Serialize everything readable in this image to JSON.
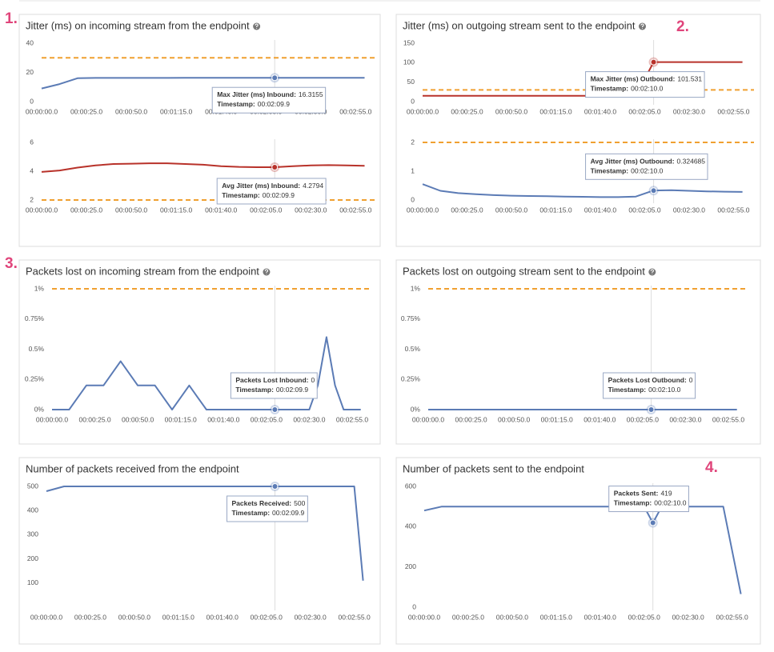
{
  "annotations": [
    "1.",
    "2.",
    "3.",
    "4."
  ],
  "chart_data": [
    {
      "type": "line",
      "title": "Jitter (ms) on incoming stream from the endpoint",
      "help_icon": true,
      "x": [
        0,
        10,
        20,
        30,
        40,
        50,
        60,
        70,
        80,
        90,
        100,
        110,
        120,
        130,
        140,
        150,
        160,
        170,
        180
      ],
      "series": [
        {
          "color": "#5b7bb5",
          "values": [
            9,
            12,
            16,
            16.2,
            16.2,
            16.2,
            16.2,
            16.2,
            16.3,
            16.3,
            16.3,
            16.3,
            16.3,
            16.3,
            16.3,
            16.3,
            16.3,
            16.3,
            16.3
          ]
        }
      ],
      "xlim": [
        0,
        182
      ],
      "ylim": [
        0,
        40
      ],
      "yticks": [
        0,
        20,
        40
      ],
      "xticks": [
        {
          "value": 0,
          "label": "00:00:00.0"
        },
        {
          "value": 25,
          "label": "00:00:25.0"
        },
        {
          "value": 50,
          "label": "00:00:50.0"
        },
        {
          "value": 75,
          "label": "00:01:15.0"
        },
        {
          "value": 100,
          "label": "00:01:40.0"
        },
        {
          "value": 125,
          "label": "00:02:05.0"
        },
        {
          "value": 150,
          "label": "00:02:30.0"
        },
        {
          "value": 175,
          "label": "00:02:55.0"
        }
      ],
      "threshold": {
        "value": 30,
        "color": "#f0a030"
      },
      "tooltip": {
        "label": "Max Jitter (ms) Inbound:",
        "value": 16.3155,
        "timestamp_label": "Timestamp:",
        "timestamp": "00:02:09.9"
      }
    },
    {
      "type": "line",
      "x": [
        0,
        10,
        20,
        30,
        40,
        50,
        60,
        70,
        80,
        90,
        100,
        110,
        120,
        130,
        140,
        150,
        160,
        170,
        180
      ],
      "series": [
        {
          "color": "#b8322a",
          "values": [
            3.95,
            4.05,
            4.25,
            4.4,
            4.5,
            4.52,
            4.55,
            4.55,
            4.5,
            4.45,
            4.35,
            4.3,
            4.28,
            4.28,
            4.35,
            4.4,
            4.42,
            4.4,
            4.38
          ]
        }
      ],
      "xlim": [
        0,
        182
      ],
      "ylim": [
        2,
        6
      ],
      "yticks": [
        2,
        4,
        6
      ],
      "xticks": [
        {
          "value": 0,
          "label": "00:00:00.0"
        },
        {
          "value": 25,
          "label": "00:00:25.0"
        },
        {
          "value": 50,
          "label": "00:00:50.0"
        },
        {
          "value": 75,
          "label": "00:01:15.0"
        },
        {
          "value": 100,
          "label": "00:01:40.0"
        },
        {
          "value": 125,
          "label": "00:02:05.0"
        },
        {
          "value": 150,
          "label": "00:02:30.0"
        },
        {
          "value": 175,
          "label": "00:02:55.0"
        }
      ],
      "threshold": {
        "value": 2,
        "color": "#f0a030"
      },
      "tooltip": {
        "label": "Avg Jitter (ms) Inbound:",
        "value": 4.2794,
        "timestamp_label": "Timestamp:",
        "timestamp": "00:02:09.9"
      }
    },
    {
      "type": "line",
      "title": "Jitter (ms) on outgoing stream sent to the endpoint",
      "help_icon": true,
      "x": [
        0,
        10,
        20,
        30,
        40,
        50,
        60,
        70,
        80,
        90,
        100,
        110,
        120,
        130,
        140,
        150,
        160,
        170,
        180
      ],
      "series": [
        {
          "color": "#b8322a",
          "values": [
            15,
            15,
            15,
            15,
            15,
            15,
            15,
            15,
            15,
            15,
            15,
            15,
            15,
            101.5,
            101.5,
            101.5,
            101.5,
            101.5,
            101.5
          ]
        }
      ],
      "xlim": [
        0,
        182
      ],
      "ylim": [
        0,
        150
      ],
      "yticks": [
        0,
        50,
        100,
        150
      ],
      "xticks": [
        {
          "value": 0,
          "label": "00:00:00.0"
        },
        {
          "value": 25,
          "label": "00:00:25.0"
        },
        {
          "value": 50,
          "label": "00:00:50.0"
        },
        {
          "value": 75,
          "label": "00:01:15.0"
        },
        {
          "value": 100,
          "label": "00:01:40.0"
        },
        {
          "value": 125,
          "label": "00:02:05.0"
        },
        {
          "value": 150,
          "label": "00:02:30.0"
        },
        {
          "value": 175,
          "label": "00:02:55.0"
        }
      ],
      "threshold": {
        "value": 30,
        "color": "#f0a030"
      },
      "tooltip": {
        "label": "Max Jitter (ms) Outbound:",
        "value": 101.531,
        "timestamp_label": "Timestamp:",
        "timestamp": "00:02:10.0"
      }
    },
    {
      "type": "line",
      "x": [
        0,
        10,
        20,
        30,
        40,
        50,
        60,
        70,
        80,
        90,
        100,
        110,
        120,
        130,
        140,
        150,
        160,
        170,
        180
      ],
      "series": [
        {
          "color": "#5b7bb5",
          "values": [
            0.55,
            0.32,
            0.24,
            0.2,
            0.17,
            0.15,
            0.14,
            0.13,
            0.12,
            0.11,
            0.1,
            0.1,
            0.12,
            0.33,
            0.34,
            0.32,
            0.3,
            0.29,
            0.28
          ]
        }
      ],
      "xlim": [
        0,
        182
      ],
      "ylim": [
        0,
        2
      ],
      "yticks": [
        0,
        1,
        2
      ],
      "xticks": [
        {
          "value": 0,
          "label": "00:00:00.0"
        },
        {
          "value": 25,
          "label": "00:00:25.0"
        },
        {
          "value": 50,
          "label": "00:00:50.0"
        },
        {
          "value": 75,
          "label": "00:01:15.0"
        },
        {
          "value": 100,
          "label": "00:01:40.0"
        },
        {
          "value": 125,
          "label": "00:02:05.0"
        },
        {
          "value": 150,
          "label": "00:02:30.0"
        },
        {
          "value": 175,
          "label": "00:02:55.0"
        }
      ],
      "threshold": {
        "value": 2,
        "color": "#f0a030"
      },
      "tooltip": {
        "label": "Avg Jitter (ms) Outbound:",
        "value": 0.324685,
        "timestamp_label": "Timestamp:",
        "timestamp": "00:02:10.0"
      }
    },
    {
      "type": "line",
      "title": "Packets lost on incoming stream from the endpoint",
      "help_icon": true,
      "x": [
        0,
        5,
        10,
        15,
        20,
        25,
        30,
        35,
        40,
        45,
        50,
        55,
        60,
        65,
        70,
        75,
        80,
        85,
        90,
        95,
        100,
        105,
        110,
        115,
        120,
        125,
        130,
        135,
        140,
        145,
        150,
        155,
        160,
        165,
        170,
        175,
        180
      ],
      "series": [
        {
          "color": "#5b7bb5",
          "values": [
            0,
            0,
            0,
            0.1,
            0.2,
            0.2,
            0.2,
            0.3,
            0.4,
            0.3,
            0.2,
            0.2,
            0.2,
            0.1,
            0,
            0.1,
            0.2,
            0.1,
            0,
            0,
            0,
            0,
            0,
            0,
            0,
            0,
            0,
            0,
            0,
            0,
            0,
            0.2,
            0.6,
            0.2,
            0,
            0,
            0
          ]
        }
      ],
      "xlim": [
        0,
        182
      ],
      "ylim": [
        0,
        1
      ],
      "yticks": [
        {
          "value": 0,
          "label": "0%"
        },
        {
          "value": 0.25,
          "label": "0.25%"
        },
        {
          "value": 0.5,
          "label": "0.5%"
        },
        {
          "value": 0.75,
          "label": "0.75%"
        },
        {
          "value": 1,
          "label": "1%"
        }
      ],
      "xticks": [
        {
          "value": 0,
          "label": "00:00:00.0"
        },
        {
          "value": 25,
          "label": "00:00:25.0"
        },
        {
          "value": 50,
          "label": "00:00:50.0"
        },
        {
          "value": 75,
          "label": "00:01:15.0"
        },
        {
          "value": 100,
          "label": "00:01:40.0"
        },
        {
          "value": 125,
          "label": "00:02:05.0"
        },
        {
          "value": 150,
          "label": "00:02:30.0"
        },
        {
          "value": 175,
          "label": "00:02:55.0"
        }
      ],
      "threshold": {
        "value": 1,
        "color": "#f0a030"
      },
      "tooltip": {
        "label": "Packets Lost Inbound:",
        "value": 0,
        "timestamp_label": "Timestamp:",
        "timestamp": "00:02:09.9"
      }
    },
    {
      "type": "line",
      "title": "Packets lost on outgoing stream sent to the endpoint",
      "help_icon": true,
      "x": [
        0,
        10,
        20,
        30,
        40,
        50,
        60,
        70,
        80,
        90,
        100,
        110,
        120,
        130,
        140,
        150,
        160,
        170,
        180
      ],
      "series": [
        {
          "color": "#5b7bb5",
          "values": [
            0,
            0,
            0,
            0,
            0,
            0,
            0,
            0,
            0,
            0,
            0,
            0,
            0,
            0,
            0,
            0,
            0,
            0,
            0
          ]
        }
      ],
      "xlim": [
        0,
        182
      ],
      "ylim": [
        0,
        1
      ],
      "yticks": [
        {
          "value": 0,
          "label": "0%"
        },
        {
          "value": 0.25,
          "label": "0.25%"
        },
        {
          "value": 0.5,
          "label": "0.5%"
        },
        {
          "value": 0.75,
          "label": "0.75%"
        },
        {
          "value": 1,
          "label": "1%"
        }
      ],
      "xticks": [
        {
          "value": 0,
          "label": "00:00:00.0"
        },
        {
          "value": 25,
          "label": "00:00:25.0"
        },
        {
          "value": 50,
          "label": "00:00:50.0"
        },
        {
          "value": 75,
          "label": "00:01:15.0"
        },
        {
          "value": 100,
          "label": "00:01:40.0"
        },
        {
          "value": 125,
          "label": "00:02:05.0"
        },
        {
          "value": 150,
          "label": "00:02:30.0"
        },
        {
          "value": 175,
          "label": "00:02:55.0"
        }
      ],
      "threshold": {
        "value": 1,
        "color": "#f0a030"
      },
      "tooltip": {
        "label": "Packets Lost Outbound:",
        "value": 0,
        "timestamp_label": "Timestamp:",
        "timestamp": "00:02:10.0"
      }
    },
    {
      "type": "line",
      "title": "Number of packets received from the endpoint",
      "x": [
        0,
        10,
        20,
        30,
        40,
        50,
        60,
        70,
        80,
        90,
        100,
        110,
        120,
        130,
        140,
        150,
        160,
        170,
        175,
        180
      ],
      "series": [
        {
          "color": "#5b7bb5",
          "values": [
            480,
            500,
            500,
            500,
            500,
            500,
            500,
            500,
            500,
            500,
            500,
            500,
            500,
            500,
            500,
            500,
            500,
            500,
            500,
            110
          ]
        }
      ],
      "xlim": [
        0,
        182
      ],
      "ylim": [
        0,
        500
      ],
      "yticks": [
        100,
        200,
        300,
        400,
        500
      ],
      "xticks": [
        {
          "value": 0,
          "label": "00:00:00.0"
        },
        {
          "value": 25,
          "label": "00:00:25.0"
        },
        {
          "value": 50,
          "label": "00:00:50.0"
        },
        {
          "value": 75,
          "label": "00:01:15.0"
        },
        {
          "value": 100,
          "label": "00:01:40.0"
        },
        {
          "value": 125,
          "label": "00:02:05.0"
        },
        {
          "value": 150,
          "label": "00:02:30.0"
        },
        {
          "value": 175,
          "label": "00:02:55.0"
        }
      ],
      "tooltip": {
        "label": "Packets Received:",
        "value": 500,
        "timestamp_label": "Timestamp:",
        "timestamp": "00:02:09.9"
      }
    },
    {
      "type": "line",
      "title": "Number of packets sent to the endpoint",
      "x": [
        0,
        10,
        20,
        30,
        40,
        50,
        60,
        70,
        80,
        90,
        100,
        110,
        120,
        125,
        130,
        135,
        140,
        150,
        160,
        170,
        180
      ],
      "series": [
        {
          "color": "#5b7bb5",
          "values": [
            480,
            500,
            500,
            500,
            500,
            500,
            500,
            500,
            500,
            500,
            500,
            500,
            500,
            500,
            419,
            500,
            500,
            500,
            500,
            500,
            65
          ]
        }
      ],
      "xlim": [
        0,
        182
      ],
      "ylim": [
        0,
        600
      ],
      "yticks": [
        0,
        200,
        400,
        600
      ],
      "xticks": [
        {
          "value": 0,
          "label": "00:00:00.0"
        },
        {
          "value": 25,
          "label": "00:00:25.0"
        },
        {
          "value": 50,
          "label": "00:00:50.0"
        },
        {
          "value": 75,
          "label": "00:01:15.0"
        },
        {
          "value": 100,
          "label": "00:01:40.0"
        },
        {
          "value": 125,
          "label": "00:02:05.0"
        },
        {
          "value": 150,
          "label": "00:02:30.0"
        },
        {
          "value": 175,
          "label": "00:02:55.0"
        }
      ],
      "tooltip": {
        "label": "Packets Sent:",
        "value": 419,
        "timestamp_label": "Timestamp:",
        "timestamp": "00:02:10.0"
      }
    }
  ]
}
